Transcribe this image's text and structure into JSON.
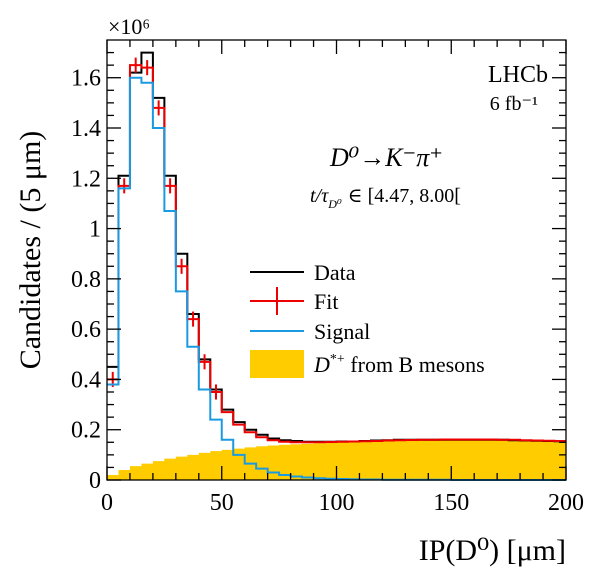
{
  "chart_data": {
    "type": "histogram",
    "xlabel": "IP(D⁰) [μm]",
    "ylabel": "Candidates / (5 μm)",
    "y_multiplier": "×10⁶",
    "xlim": [
      0,
      200
    ],
    "ylim": [
      0,
      1.75
    ],
    "x_ticks": [
      0,
      50,
      100,
      150,
      200
    ],
    "y_ticks": [
      0,
      0.2,
      0.4,
      0.6,
      0.8,
      1,
      1.2,
      1.4,
      1.6
    ],
    "y_tick_labels": [
      "0",
      "0.2",
      "0.4",
      "0.6",
      "0.8",
      "1",
      "1.2",
      "1.4",
      "1.6"
    ],
    "bin_edges_step": 5,
    "grid": false,
    "legend_position": "center-right",
    "annotations": {
      "experiment": "LHCb",
      "luminosity": "6 fb⁻¹",
      "decay": "D⁰→K⁻π⁺",
      "selection_prefix": "t/τ",
      "selection_sub": "D⁰",
      "selection_range": "∈  [4.47, 8.00["
    },
    "series": [
      {
        "name": "Data",
        "style": "step",
        "color": "#000000",
        "x": [
          0,
          5,
          10,
          15,
          20,
          25,
          30,
          35,
          40,
          45,
          50,
          55,
          60,
          65,
          70,
          75,
          80,
          85,
          90,
          95,
          100,
          105,
          110,
          115,
          120,
          125,
          130,
          135,
          140,
          145,
          150,
          155,
          160,
          165,
          170,
          175,
          180,
          185,
          190,
          195
        ],
        "values": [
          0.45,
          1.21,
          1.62,
          1.7,
          1.52,
          1.21,
          0.9,
          0.66,
          0.48,
          0.36,
          0.28,
          0.23,
          0.2,
          0.18,
          0.165,
          0.158,
          0.155,
          0.152,
          0.152,
          0.152,
          0.153,
          0.153,
          0.155,
          0.157,
          0.158,
          0.16,
          0.16,
          0.16,
          0.16,
          0.16,
          0.16,
          0.16,
          0.16,
          0.16,
          0.16,
          0.158,
          0.157,
          0.156,
          0.155,
          0.154
        ]
      },
      {
        "name": "Fit",
        "style": "errorbar-step",
        "color": "#ee0000",
        "x": [
          0,
          5,
          10,
          15,
          20,
          25,
          30,
          35,
          40,
          45,
          50,
          55,
          60,
          65,
          70,
          75,
          80,
          85,
          90,
          95,
          100,
          105,
          110,
          115,
          120,
          125,
          130,
          135,
          140,
          145,
          150,
          155,
          160,
          165,
          170,
          175,
          180,
          185,
          190,
          195
        ],
        "values": [
          0.4,
          1.17,
          1.65,
          1.64,
          1.48,
          1.17,
          0.85,
          0.64,
          0.47,
          0.35,
          0.27,
          0.22,
          0.19,
          0.17,
          0.158,
          0.152,
          0.15,
          0.15,
          0.15,
          0.151,
          0.152,
          0.153,
          0.154,
          0.155,
          0.157,
          0.158,
          0.159,
          0.16,
          0.16,
          0.161,
          0.161,
          0.161,
          0.161,
          0.161,
          0.16,
          0.16,
          0.158,
          0.157,
          0.156,
          0.155
        ]
      },
      {
        "name": "Signal",
        "style": "step",
        "color": "#1a9ae0",
        "x": [
          0,
          5,
          10,
          15,
          20,
          25,
          30,
          35,
          40,
          45,
          50,
          55,
          60,
          65,
          70,
          75,
          80,
          85,
          90,
          95,
          100,
          105,
          110,
          115,
          120,
          125,
          130,
          135,
          140,
          145,
          150,
          155,
          160,
          165,
          170,
          175,
          180,
          185,
          190,
          195
        ],
        "values": [
          0.38,
          1.16,
          1.6,
          1.58,
          1.4,
          1.07,
          0.75,
          0.53,
          0.36,
          0.24,
          0.16,
          0.1,
          0.065,
          0.045,
          0.03,
          0.02,
          0.014,
          0.01,
          0.007,
          0.005,
          0.004,
          0.003,
          0.002,
          0.002,
          0.001,
          0.001,
          0.001,
          0.001,
          0.001,
          0.001,
          0.0,
          0.0,
          0.0,
          0.0,
          0.0,
          0.0,
          0.0,
          0.0,
          0.0,
          0.0
        ]
      },
      {
        "name": "D*+ from B mesons",
        "legend_label_main": "D",
        "legend_label_sup": "*+",
        "legend_label_rest": " from B mesons",
        "style": "filled-step",
        "color": "#ffcc00",
        "x": [
          0,
          5,
          10,
          15,
          20,
          25,
          30,
          35,
          40,
          45,
          50,
          55,
          60,
          65,
          70,
          75,
          80,
          85,
          90,
          95,
          100,
          105,
          110,
          115,
          120,
          125,
          130,
          135,
          140,
          145,
          150,
          155,
          160,
          165,
          170,
          175,
          180,
          185,
          190,
          195
        ],
        "values": [
          0.02,
          0.04,
          0.055,
          0.065,
          0.075,
          0.085,
          0.093,
          0.1,
          0.108,
          0.115,
          0.12,
          0.125,
          0.13,
          0.134,
          0.137,
          0.14,
          0.142,
          0.144,
          0.146,
          0.148,
          0.15,
          0.151,
          0.152,
          0.153,
          0.154,
          0.155,
          0.156,
          0.157,
          0.158,
          0.159,
          0.16,
          0.16,
          0.16,
          0.16,
          0.159,
          0.158,
          0.157,
          0.156,
          0.155,
          0.154
        ]
      }
    ]
  }
}
